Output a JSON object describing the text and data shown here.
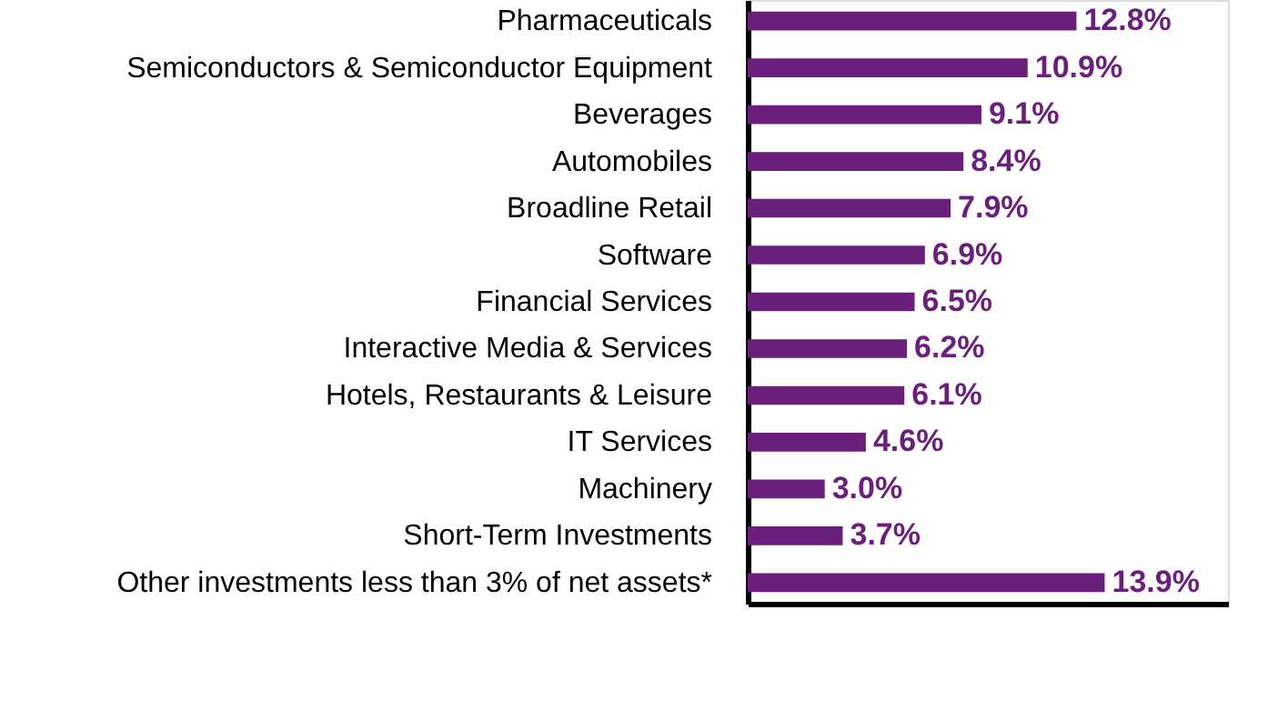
{
  "chart_data": {
    "type": "bar",
    "orientation": "horizontal",
    "categories": [
      "Pharmaceuticals",
      "Semiconductors & Semiconductor Equipment",
      "Beverages",
      "Automobiles",
      "Broadline Retail",
      "Software",
      "Financial Services",
      "Interactive Media & Services",
      "Hotels, Restaurants & Leisure",
      "IT Services",
      "Machinery",
      "Short-Term Investments",
      "Other investments less than 3% of net assets*"
    ],
    "values": [
      12.8,
      10.9,
      9.1,
      8.4,
      7.9,
      6.9,
      6.5,
      6.2,
      6.1,
      4.6,
      3.0,
      3.7,
      13.9
    ],
    "value_labels": [
      "12.8%",
      "10.9%",
      "9.1%",
      "8.4%",
      "7.9%",
      "6.9%",
      "6.5%",
      "6.2%",
      "6.1%",
      "4.6%",
      "3.0%",
      "3.7%",
      "13.9%"
    ],
    "color": "#6b1f7c",
    "xlim": [
      0,
      18.7
    ],
    "tick_labels": "y"
  }
}
